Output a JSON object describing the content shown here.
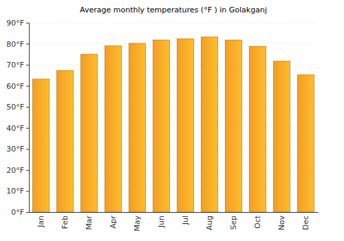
{
  "chart_data": {
    "type": "bar",
    "title": "Average monthly temperatures (°F ) in Golakganj",
    "categories": [
      "Jan",
      "Feb",
      "Mar",
      "Apr",
      "May",
      "Jun",
      "Jul",
      "Aug",
      "Sep",
      "Oct",
      "Nov",
      "Dec"
    ],
    "values": [
      63.2,
      67.3,
      75,
      79,
      80.2,
      81.8,
      82.4,
      83.2,
      81.8,
      78.8,
      71.7,
      65.2
    ],
    "color": "#ffa726",
    "ylim": [
      0,
      90
    ],
    "yticks": [
      {
        "value": 0,
        "label": "0°F"
      },
      {
        "value": 10,
        "label": "10°F"
      },
      {
        "value": 20,
        "label": "20°F"
      },
      {
        "value": 30,
        "label": "30°F"
      },
      {
        "value": 40,
        "label": "40°F"
      },
      {
        "value": 50,
        "label": "50°F"
      },
      {
        "value": 60,
        "label": "60°F"
      },
      {
        "value": 70,
        "label": "70°F"
      },
      {
        "value": 80,
        "label": "80°F"
      },
      {
        "value": 90,
        "label": "90°F"
      }
    ],
    "grid": true
  }
}
